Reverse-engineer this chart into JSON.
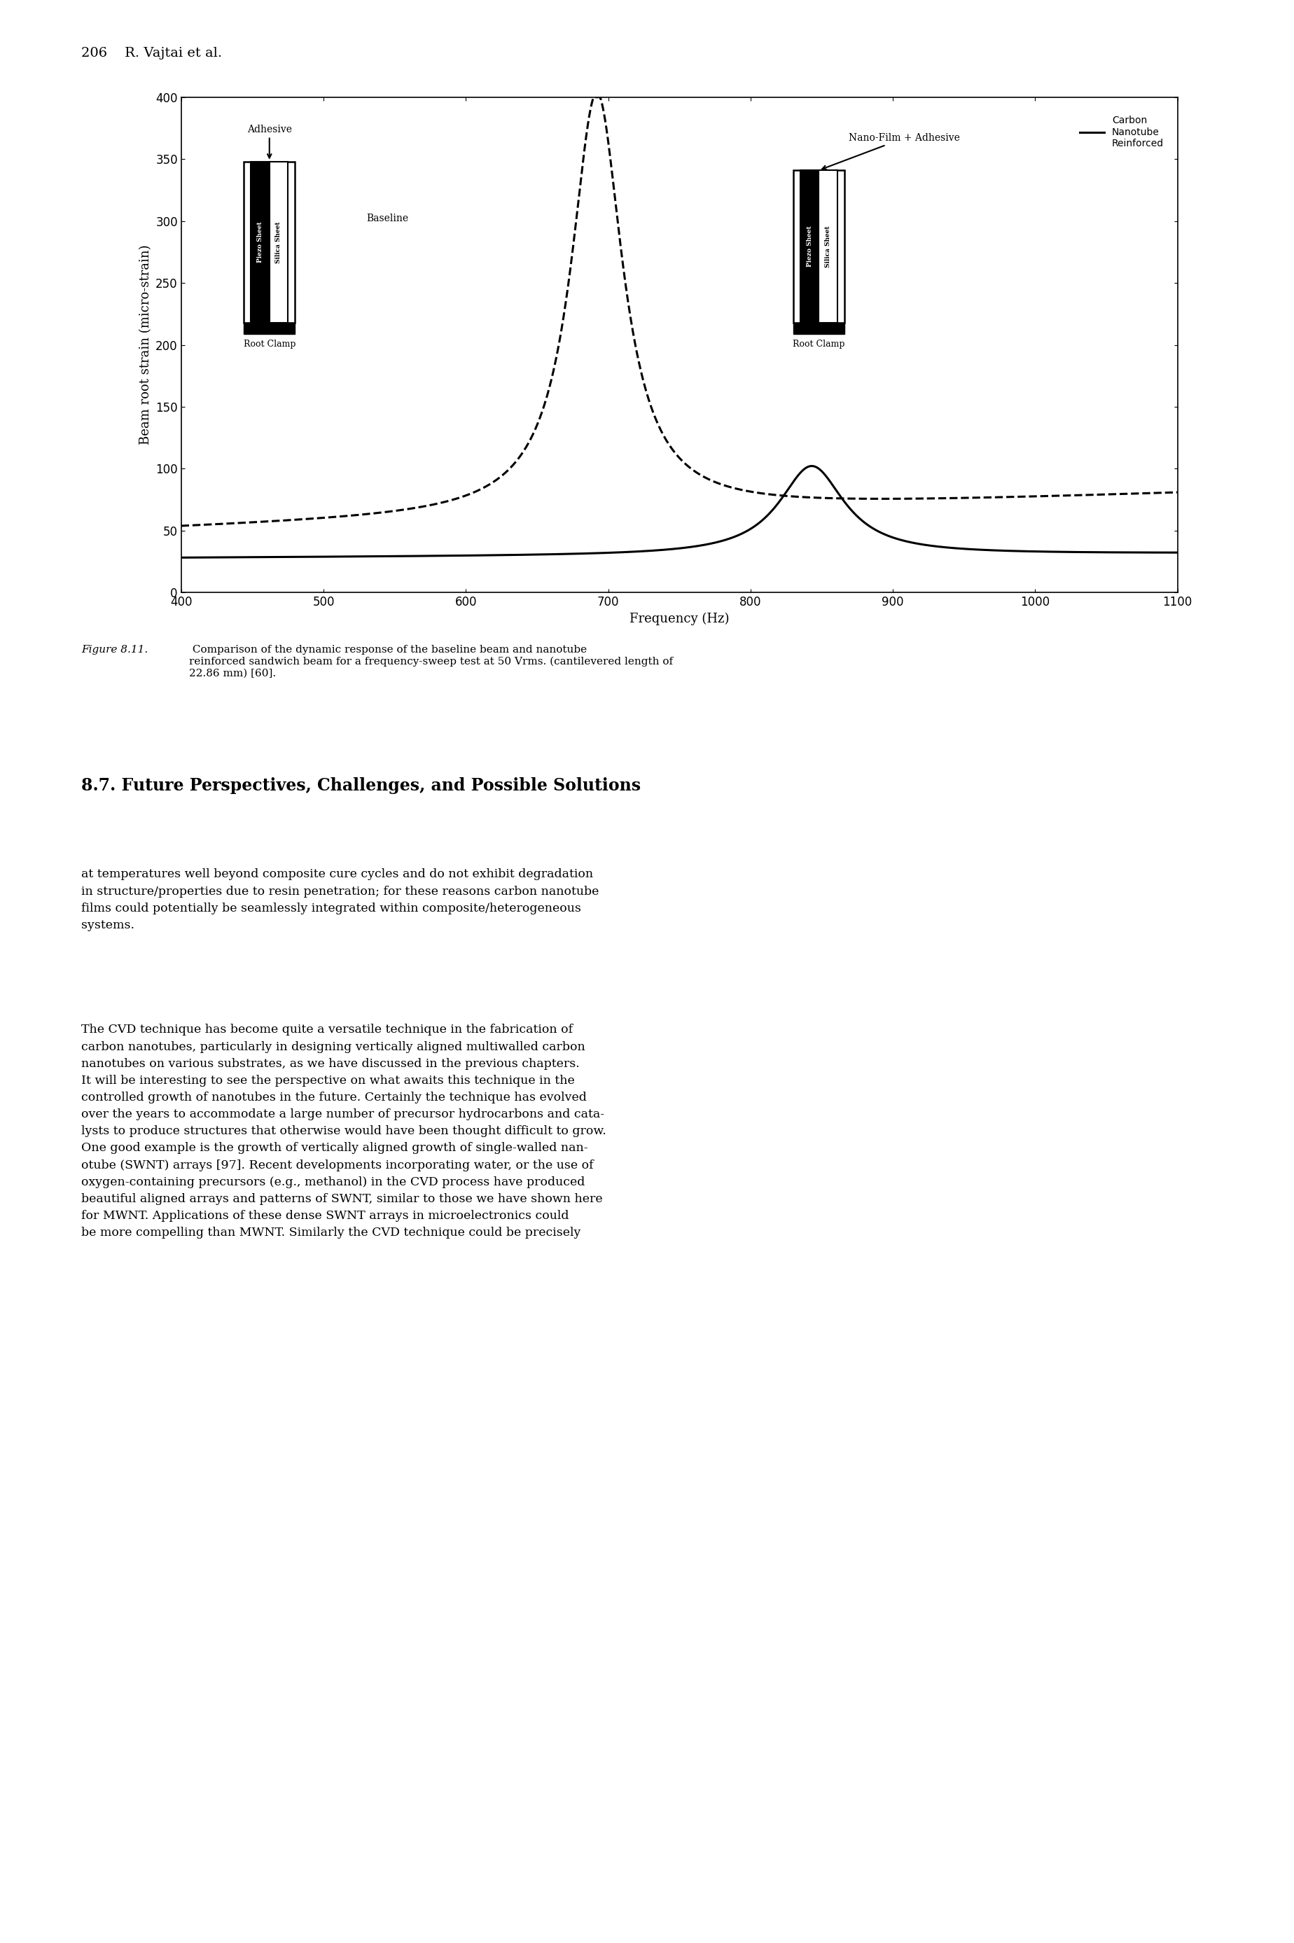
{
  "page_header": "206    R. Vajtai et al.",
  "xlabel": "Frequency (Hz)",
  "ylabel": "Beam root strain (micro-strain)",
  "xlim": [
    400,
    1100
  ],
  "ylim": [
    0,
    400
  ],
  "xticks": [
    400,
    500,
    600,
    700,
    800,
    900,
    1000,
    1100
  ],
  "yticks": [
    0,
    50,
    100,
    150,
    200,
    250,
    300,
    350,
    400
  ],
  "baseline_label": "Baseline",
  "cnt_label": "Carbon\nNanotube\nReinforced",
  "figure_caption_prefix": "Figure 8.11.",
  "figure_caption_body": " Comparison of the dynamic response of the baseline beam and nanotube\nreinforced sandwich beam for a frequency-sweep test at 50 Vrms. (cantilevered length of\n22.86 mm) [60].",
  "section_title": "8.7. Future Perspectives, Challenges, and Possible Solutions",
  "body_text_1": "at temperatures well beyond composite cure cycles and do not exhibit degradation\nin structure/properties due to resin penetration; for these reasons carbon nanotube\nfilms could potentially be seamlessly integrated within composite/heterogeneous\nsystems.",
  "body_text_2": "The CVD technique has become quite a versatile technique in the fabrication of\ncarbon nanotubes, particularly in designing vertically aligned multiwalled carbon\nnanotubes on various substrates, as we have discussed in the previous chapters.\nIt will be interesting to see the perspective on what awaits this technique in the\ncontrolled growth of nanotubes in the future. Certainly the technique has evolved\nover the years to accommodate a large number of precursor hydrocarbons and cata-\nlysts to produce structures that otherwise would have been thought difficult to grow.\nOne good example is the growth of vertically aligned growth of single-walled nan-\notube (SWNT) arrays [97]. Recent developments incorporating water, or the use of\noxygen-containing precursors (e.g., methanol) in the CVD process have produced\nbeautiful aligned arrays and patterns of SWNT, similar to those we have shown here\nfor MWNT. Applications of these dense SWNT arrays in microelectronics could\nbe more compelling than MWNT. Similarly the CVD technique could be precisely"
}
